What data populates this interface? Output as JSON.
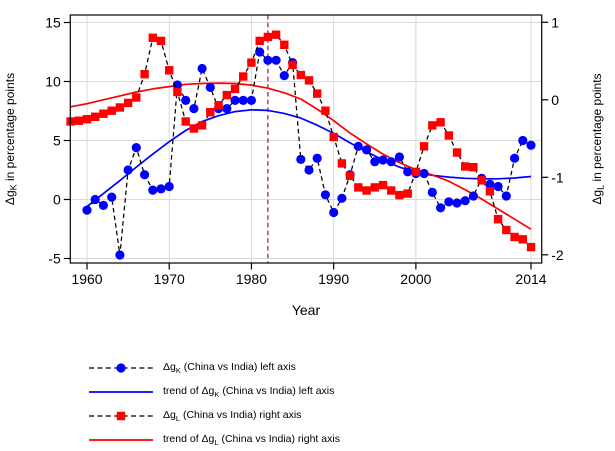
{
  "chart_data": {
    "type": "line",
    "title": "",
    "x_axis": {
      "title": "Year",
      "ticks": [
        1960,
        1970,
        1980,
        1990,
        2000,
        2014
      ],
      "range": [
        1958,
        2015.5
      ],
      "grid": true
    },
    "y_left": {
      "title_pre": "Δg",
      "title_sub": "K",
      "title_post": " in percentage points",
      "ticks": [
        -5,
        0,
        5,
        10,
        15
      ],
      "range": [
        -5.4,
        15.6
      ],
      "grid": true
    },
    "y_right": {
      "title_pre": "Δg",
      "title_sub": "L",
      "title_post": " in percentage points",
      "ticks": [
        -2,
        -1,
        0,
        1
      ],
      "range": [
        -2.1,
        1.1
      ],
      "grid": false
    },
    "reference_line": {
      "year": 1982,
      "orientation": "vertical",
      "style": "dashed",
      "color": "#9e1331"
    },
    "colors": {
      "gk": "#0000ff",
      "gl": "#ff0000",
      "connector": "#000000",
      "grid": "#d9d9d9",
      "axis": "#000000"
    },
    "series": [
      {
        "id": "gk",
        "name": "Δg_K (China vs India) left axis",
        "axis": "left",
        "style": "dashed-connector-with-circle-markers",
        "marker": "circle",
        "marker_color": "#0000ff",
        "start_year": 1960,
        "values": [
          -0.9,
          0.0,
          -0.5,
          0.2,
          -4.7,
          2.5,
          4.4,
          2.1,
          0.8,
          0.9,
          1.1,
          9.7,
          8.4,
          7.7,
          11.1,
          9.5,
          7.7,
          7.7,
          8.4,
          8.4,
          8.4,
          12.5,
          11.8,
          11.8,
          10.5,
          11.6,
          3.4,
          2.5,
          3.5,
          0.4,
          -1.1,
          0.1,
          2.1,
          4.5,
          4.2,
          3.2,
          3.35,
          3.2,
          3.6,
          2.35,
          2.2,
          2.2,
          0.6,
          -0.7,
          -0.2,
          -0.3,
          -0.1,
          0.3,
          1.8,
          1.3,
          1.1,
          0.3,
          3.5,
          5.0,
          4.6
        ]
      },
      {
        "id": "trend_gk",
        "name": "trend of Δg_K (China vs India) left axis",
        "axis": "left",
        "style": "solid-line",
        "color": "#0000ff",
        "points": [
          [
            1960,
            -0.6
          ],
          [
            1962,
            0.5
          ],
          [
            1964,
            1.6
          ],
          [
            1966,
            2.75
          ],
          [
            1968,
            3.85
          ],
          [
            1970,
            4.9
          ],
          [
            1972,
            5.85
          ],
          [
            1974,
            6.6
          ],
          [
            1976,
            7.1
          ],
          [
            1978,
            7.45
          ],
          [
            1980,
            7.6
          ],
          [
            1982,
            7.55
          ],
          [
            1984,
            7.3
          ],
          [
            1986,
            6.9
          ],
          [
            1988,
            6.3
          ],
          [
            1990,
            5.6
          ],
          [
            1992,
            4.8
          ],
          [
            1994,
            4.05
          ],
          [
            1996,
            3.35
          ],
          [
            1998,
            2.75
          ],
          [
            2000,
            2.3
          ],
          [
            2002,
            2.05
          ],
          [
            2004,
            1.9
          ],
          [
            2006,
            1.8
          ],
          [
            2008,
            1.75
          ],
          [
            2010,
            1.75
          ],
          [
            2012,
            1.82
          ],
          [
            2014,
            1.95
          ]
        ]
      },
      {
        "id": "gl",
        "name": "Δg_L (China vs India) right axis",
        "axis": "right",
        "style": "dashed-connector-with-square-markers",
        "marker": "square",
        "marker_color": "#ff0000",
        "start_year": 1958,
        "values": [
          -0.28,
          -0.27,
          -0.25,
          -0.22,
          -0.18,
          -0.14,
          -0.1,
          -0.04,
          0.03,
          0.33,
          0.8,
          0.76,
          0.38,
          0.1,
          -0.28,
          -0.37,
          -0.33,
          -0.16,
          -0.07,
          0.06,
          0.14,
          0.3,
          0.48,
          0.76,
          0.81,
          0.84,
          0.71,
          0.45,
          0.32,
          0.25,
          0.08,
          -0.14,
          -0.48,
          -0.82,
          -0.98,
          -1.13,
          -1.17,
          -1.13,
          -1.1,
          -1.17,
          -1.23,
          -1.21,
          -0.93,
          -0.6,
          -0.33,
          -0.29,
          -0.46,
          -0.68,
          -0.86,
          -0.87,
          -1.04,
          -1.18,
          -1.54,
          -1.68,
          -1.77,
          -1.8,
          -1.9
        ]
      },
      {
        "id": "trend_gl",
        "name": "trend of Δg_L (China vs India) right axis",
        "axis": "right",
        "style": "solid-line",
        "color": "#ff0000",
        "points": [
          [
            1958,
            -0.09
          ],
          [
            1960,
            -0.05
          ],
          [
            1962,
            0.0
          ],
          [
            1964,
            0.05
          ],
          [
            1966,
            0.1
          ],
          [
            1968,
            0.14
          ],
          [
            1970,
            0.17
          ],
          [
            1972,
            0.2
          ],
          [
            1974,
            0.21
          ],
          [
            1976,
            0.215
          ],
          [
            1978,
            0.21
          ],
          [
            1980,
            0.19
          ],
          [
            1982,
            0.15
          ],
          [
            1984,
            0.09
          ],
          [
            1986,
            0.01
          ],
          [
            1988,
            -0.12
          ],
          [
            1990,
            -0.27
          ],
          [
            1992,
            -0.43
          ],
          [
            1994,
            -0.57
          ],
          [
            1996,
            -0.7
          ],
          [
            1998,
            -0.81
          ],
          [
            2000,
            -0.9
          ],
          [
            2002,
            -0.97
          ],
          [
            2004,
            -1.05
          ],
          [
            2006,
            -1.16
          ],
          [
            2008,
            -1.28
          ],
          [
            2010,
            -1.41
          ],
          [
            2012,
            -1.54
          ],
          [
            2014,
            -1.67
          ]
        ]
      }
    ],
    "legend": {
      "position": "below-left",
      "items": [
        {
          "pre": "Δg",
          "sub": "K",
          "post": " (China vs India) left axis"
        },
        {
          "pre": "trend of Δg",
          "sub": "K",
          "post": " (China vs India) left axis"
        },
        {
          "pre": "Δg",
          "sub": "L",
          "post": " (China vs India) right axis"
        },
        {
          "pre": "trend of Δg",
          "sub": "L",
          "post": " (China vs India) right axis"
        }
      ]
    }
  }
}
